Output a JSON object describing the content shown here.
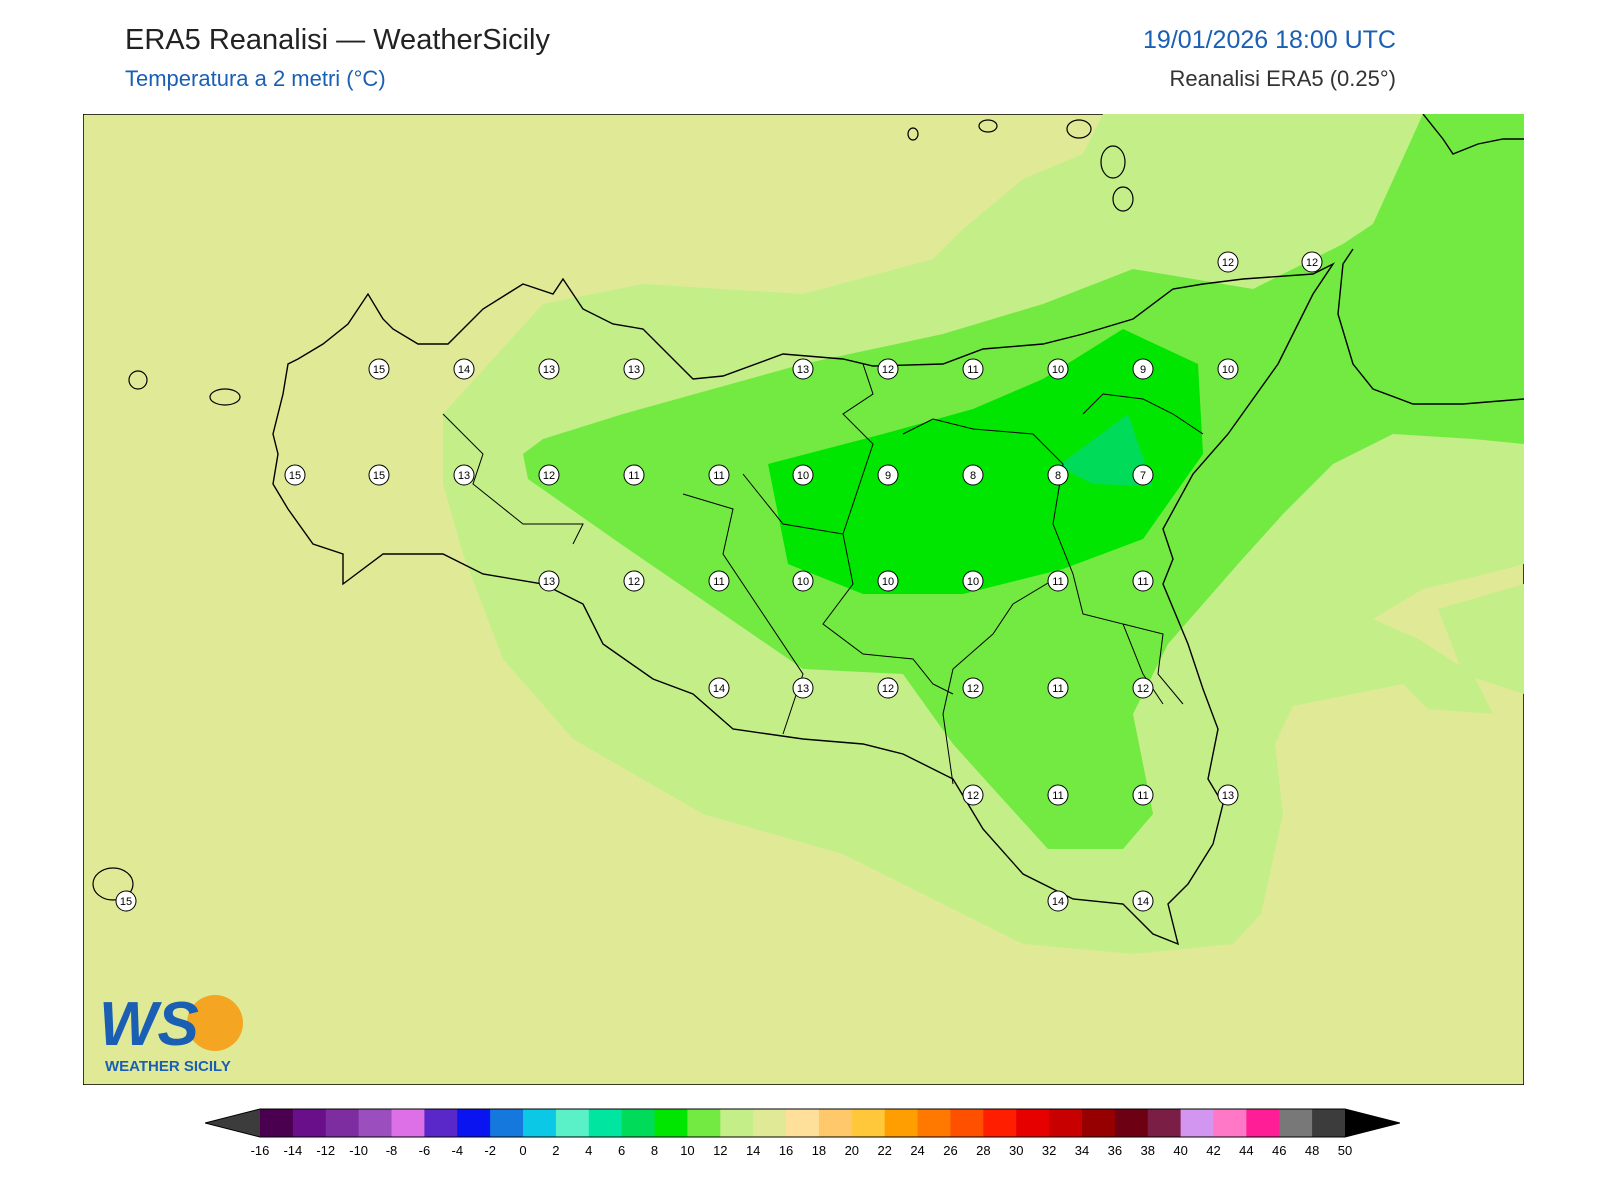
{
  "header": {
    "title": "ERA5 Reanalisi — WeatherSicily",
    "subtitle": "Temperatura a 2 metri (°C)",
    "datetime": "19/01/2026 18:00 UTC",
    "source": "Reanalisi ERA5 (0.25°)"
  },
  "logo": {
    "text": "WEATHER SICILY",
    "letters": "WS"
  },
  "colors": {
    "t16": "#e0ea96",
    "t14": "#c4ee88",
    "t12": "#72ea42",
    "t10": "#00e600",
    "t8": "#00dc5a",
    "coast": "#000000"
  },
  "map_labels": [
    {
      "v": "15"
    },
    {
      "v": "14"
    },
    {
      "v": "13"
    },
    {
      "v": "13"
    },
    {
      "v": "13"
    },
    {
      "v": "12"
    },
    {
      "v": "11"
    },
    {
      "v": "10"
    },
    {
      "v": "9"
    },
    {
      "v": "10"
    },
    {
      "v": "15"
    },
    {
      "v": "15"
    },
    {
      "v": "13"
    },
    {
      "v": "12"
    },
    {
      "v": "11"
    },
    {
      "v": "11"
    },
    {
      "v": "10"
    },
    {
      "v": "9"
    },
    {
      "v": "8"
    },
    {
      "v": "8"
    },
    {
      "v": "7"
    },
    {
      "v": "13"
    },
    {
      "v": "12"
    },
    {
      "v": "11"
    },
    {
      "v": "10"
    },
    {
      "v": "10"
    },
    {
      "v": "10"
    },
    {
      "v": "11"
    },
    {
      "v": "11"
    },
    {
      "v": "14"
    },
    {
      "v": "13"
    },
    {
      "v": "12"
    },
    {
      "v": "12"
    },
    {
      "v": "11"
    },
    {
      "v": "12"
    },
    {
      "v": "12"
    },
    {
      "v": "11"
    },
    {
      "v": "11"
    },
    {
      "v": "13"
    },
    {
      "v": "14"
    },
    {
      "v": "14"
    },
    {
      "v": "15"
    },
    {
      "v": "12"
    },
    {
      "v": "12"
    }
  ],
  "colorbar": {
    "ticks": [
      "-16",
      "-14",
      "-12",
      "-10",
      "-8",
      "-6",
      "-4",
      "-2",
      "0",
      "2",
      "4",
      "6",
      "8",
      "10",
      "12",
      "14",
      "16",
      "18",
      "20",
      "22",
      "24",
      "26",
      "28",
      "30",
      "32",
      "34",
      "36",
      "38",
      "40",
      "42",
      "44",
      "46",
      "48",
      "50"
    ],
    "colors": [
      "#4a004e",
      "#6a0f8a",
      "#7d2da0",
      "#9b4fbf",
      "#dd70e6",
      "#5a28c8",
      "#0a14f0",
      "#1478dc",
      "#0ac8e6",
      "#5af0c8",
      "#00e6a0",
      "#00dc5a",
      "#00e600",
      "#72ea42",
      "#c4ee88",
      "#e0ea96",
      "#ffe09a",
      "#ffc86a",
      "#ffc83a",
      "#ff9e00",
      "#ff7800",
      "#ff5000",
      "#ff1e00",
      "#e60000",
      "#c80000",
      "#960000",
      "#6e0014",
      "#7a1e46",
      "#d296f0",
      "#ff78c8",
      "#ff1e96",
      "#787878",
      "#3c3c3c"
    ]
  }
}
